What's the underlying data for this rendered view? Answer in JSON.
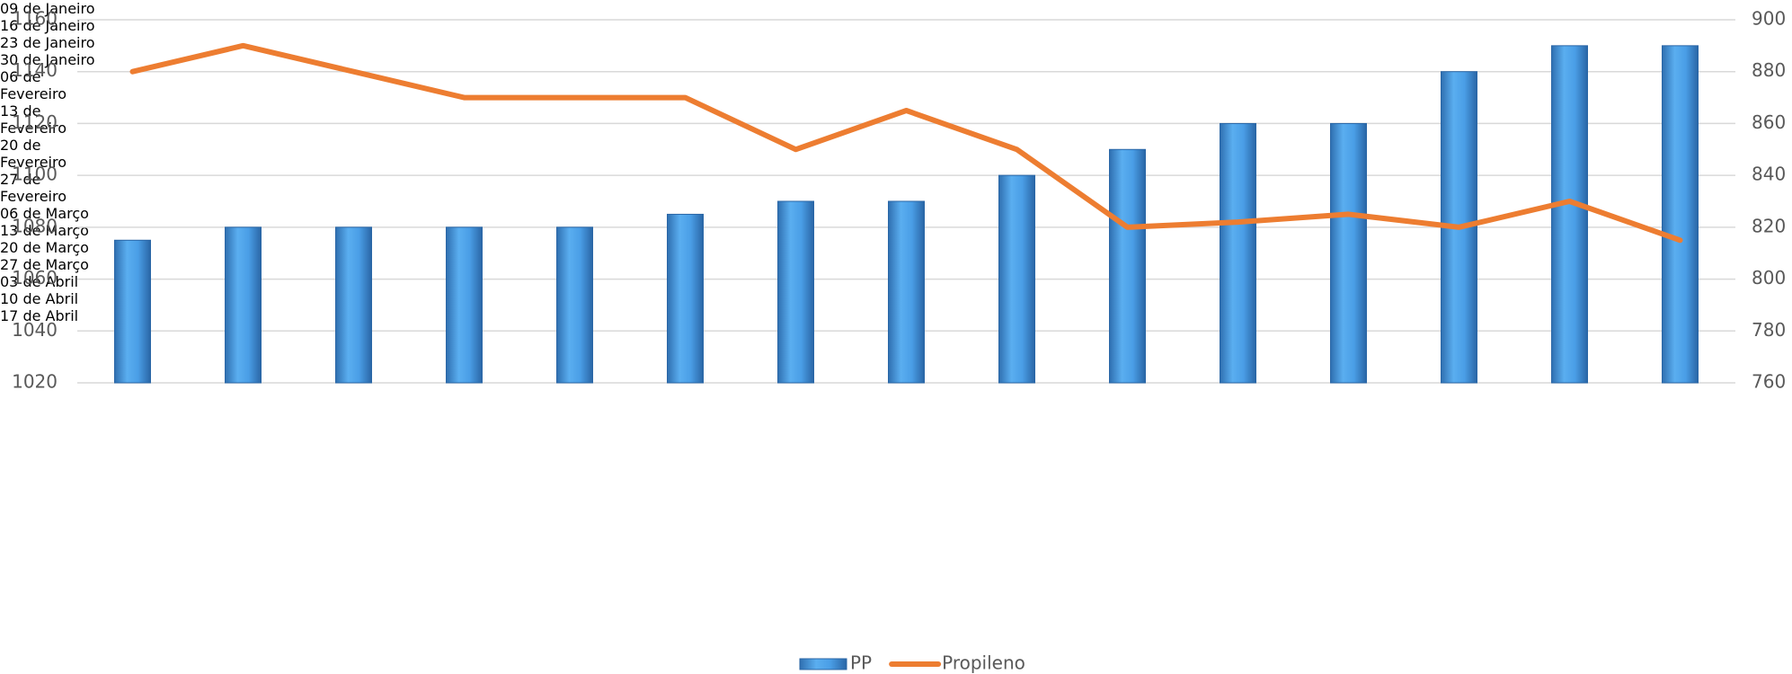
{
  "chart_data": {
    "type": "bar-line",
    "categories": [
      "09 de Janeiro",
      "16 de Janeiro",
      "23 de Janeiro",
      "30 de Janeiro",
      "06 de Fevereiro",
      "13 de Fevereiro",
      "20 de Fevereiro",
      "27 de Fevereiro",
      "06 de Março",
      "13 de Março",
      "20 de Março",
      "27 de Março",
      "03 de Abril",
      "10 de Abril",
      "17 de Abril"
    ],
    "series": [
      {
        "name": "PP",
        "type": "bar",
        "color": "#4a9ee6",
        "values": [
          1075,
          1080,
          1080,
          1080,
          1080,
          1085,
          1090,
          1090,
          1100,
          1110,
          1120,
          1120,
          1140,
          1150,
          1150
        ]
      },
      {
        "name": "Propileno",
        "type": "line",
        "axis": "y2",
        "color": "#ed7d31",
        "values": [
          880,
          890,
          880,
          870,
          870,
          870,
          850,
          865,
          850,
          820,
          822,
          825,
          820,
          830,
          815
        ]
      }
    ],
    "ylim": [
      1020,
      1160
    ],
    "yticks": [
      1020,
      1040,
      1060,
      1080,
      1100,
      1120,
      1140,
      1160
    ],
    "y2lim": [
      760,
      900
    ],
    "y2ticks": [
      760,
      780,
      800,
      820,
      840,
      860,
      880,
      900
    ],
    "grid": true,
    "legend": "bottom"
  }
}
